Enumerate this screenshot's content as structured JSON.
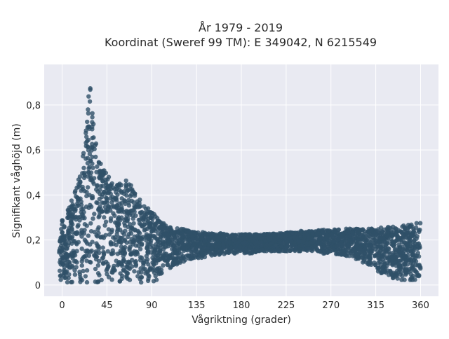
{
  "chart_data": {
    "type": "scatter",
    "title_line1": "År 1979 - 2019",
    "title_line2": "Koordinat (Sweref 99 TM): E 349042, N 6215549",
    "xlabel": "Vågriktning (grader)",
    "ylabel": "Signifikant våghöjd (m)",
    "xlim": [
      -18,
      378
    ],
    "ylim": [
      -0.05,
      0.98
    ],
    "x_ticks": [
      0,
      45,
      90,
      135,
      180,
      225,
      270,
      315,
      360
    ],
    "x_tick_labels": [
      "0",
      "45",
      "90",
      "135",
      "180",
      "225",
      "270",
      "315",
      "360"
    ],
    "y_ticks": [
      0,
      0.2,
      0.4,
      0.6,
      0.8
    ],
    "y_tick_labels": [
      "0",
      "0,2",
      "0,4",
      "0,6",
      "0,8"
    ],
    "grid": true,
    "marker_color": "#2f5068",
    "background_color": "#e9eaf2",
    "envelope": {
      "description_points_x": [
        -3,
        0,
        5,
        10,
        15,
        20,
        24,
        26,
        28,
        30,
        33,
        37,
        42,
        47,
        52,
        57,
        62,
        66,
        70,
        75,
        80,
        85,
        90,
        95,
        100,
        105,
        110,
        120,
        130,
        140,
        150,
        160,
        170,
        180,
        190,
        200,
        210,
        220,
        230,
        240,
        250,
        260,
        270,
        280,
        290,
        300,
        310,
        320,
        330,
        340,
        350,
        355,
        360
      ],
      "upper_y": [
        0.26,
        0.3,
        0.33,
        0.38,
        0.44,
        0.55,
        0.7,
        0.85,
        0.94,
        0.8,
        0.66,
        0.58,
        0.52,
        0.48,
        0.46,
        0.45,
        0.46,
        0.47,
        0.44,
        0.4,
        0.37,
        0.35,
        0.33,
        0.3,
        0.28,
        0.27,
        0.26,
        0.25,
        0.24,
        0.235,
        0.23,
        0.23,
        0.225,
        0.225,
        0.225,
        0.225,
        0.23,
        0.23,
        0.235,
        0.24,
        0.24,
        0.245,
        0.245,
        0.25,
        0.25,
        0.25,
        0.25,
        0.255,
        0.26,
        0.265,
        0.27,
        0.28,
        0.29
      ],
      "lower_y": [
        0.02,
        0.01,
        0.01,
        0.01,
        0.01,
        0.01,
        0.01,
        0.01,
        0.01,
        0.01,
        0.01,
        0.01,
        0.01,
        0.01,
        0.01,
        0.01,
        0.01,
        0.01,
        0.01,
        0.01,
        0.01,
        0.01,
        0.01,
        0.02,
        0.04,
        0.06,
        0.08,
        0.1,
        0.11,
        0.12,
        0.13,
        0.13,
        0.14,
        0.14,
        0.14,
        0.15,
        0.15,
        0.15,
        0.15,
        0.15,
        0.15,
        0.14,
        0.14,
        0.13,
        0.12,
        0.1,
        0.08,
        0.05,
        0.03,
        0.02,
        0.02,
        0.02,
        0.02
      ]
    }
  }
}
